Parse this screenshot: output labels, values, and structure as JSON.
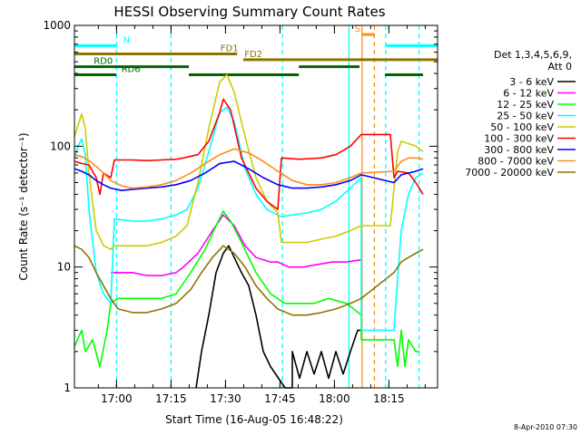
{
  "chart_data": {
    "type": "line",
    "title": "HESSI Observing Summary Count Rates",
    "xlabel": "Start Time (16-Aug-05 16:48:22)",
    "ylabel": "Count Rate (s⁻¹ detector⁻¹)",
    "y_scale": "log",
    "ylim": [
      1,
      1000
    ],
    "xlim_minutes": [
      0,
      100
    ],
    "x_ticks": [
      {
        "label": "17:00",
        "minute": 11.6
      },
      {
        "label": "17:15",
        "minute": 26.6
      },
      {
        "label": "17:30",
        "minute": 41.6
      },
      {
        "label": "17:45",
        "minute": 56.6
      },
      {
        "label": "18:00",
        "minute": 71.6
      },
      {
        "label": "18:15",
        "minute": 86.6
      }
    ],
    "y_ticks": [
      {
        "label": "1",
        "value": 1
      },
      {
        "label": "10",
        "value": 10
      },
      {
        "label": "100",
        "value": 100
      },
      {
        "label": "1000",
        "value": 1000
      }
    ],
    "legend_header": [
      "Det 1,3,4,5,6,9,",
      "Att 0"
    ],
    "legend_placement": "right",
    "series": [
      {
        "name": "3 - 6 keV",
        "color": "#000000",
        "points": [
          [
            33.5,
            1
          ],
          [
            35,
            2
          ],
          [
            37,
            4
          ],
          [
            39,
            9
          ],
          [
            41,
            13
          ],
          [
            42.5,
            15
          ],
          [
            44,
            12
          ],
          [
            46,
            9
          ],
          [
            48,
            7
          ],
          [
            50,
            4
          ],
          [
            52,
            2
          ],
          [
            54,
            1.5
          ],
          [
            58,
            1
          ],
          [
            60,
            1
          ],
          [
            60,
            2
          ],
          [
            62,
            1.2
          ],
          [
            64,
            2
          ],
          [
            66,
            1.3
          ],
          [
            68,
            2
          ],
          [
            70,
            1.2
          ],
          [
            72,
            2
          ],
          [
            74,
            1.3
          ],
          [
            76,
            2
          ],
          [
            78,
            3
          ],
          [
            79,
            3
          ]
        ]
      },
      {
        "name": "6 - 12 keV",
        "color": "#ff00ff",
        "points": [
          [
            10,
            9
          ],
          [
            12,
            9
          ],
          [
            16,
            9
          ],
          [
            20,
            8.5
          ],
          [
            24,
            8.5
          ],
          [
            28,
            9
          ],
          [
            30,
            10
          ],
          [
            34,
            13
          ],
          [
            38,
            20
          ],
          [
            41,
            27
          ],
          [
            44,
            22
          ],
          [
            47,
            15
          ],
          [
            50,
            12
          ],
          [
            54,
            11
          ],
          [
            56,
            11
          ],
          [
            59,
            10
          ],
          [
            63,
            10
          ],
          [
            67,
            10.5
          ],
          [
            71,
            11
          ],
          [
            75,
            11
          ],
          [
            79,
            11.5
          ]
        ]
      },
      {
        "name": "12 - 25 keV",
        "color": "#00ff00",
        "points": [
          [
            0,
            2.2
          ],
          [
            2,
            3
          ],
          [
            3,
            2
          ],
          [
            5,
            2.5
          ],
          [
            7,
            1.5
          ],
          [
            9,
            3
          ],
          [
            10,
            5
          ],
          [
            12,
            5.5
          ],
          [
            16,
            5.5
          ],
          [
            20,
            5.5
          ],
          [
            24,
            5.5
          ],
          [
            28,
            6
          ],
          [
            32,
            9
          ],
          [
            36,
            14
          ],
          [
            39,
            22
          ],
          [
            41,
            29
          ],
          [
            43,
            24
          ],
          [
            46,
            16
          ],
          [
            50,
            9
          ],
          [
            54,
            6
          ],
          [
            58,
            5
          ],
          [
            62,
            5
          ],
          [
            66,
            5
          ],
          [
            70,
            5.5
          ],
          [
            75,
            5
          ],
          [
            79,
            4
          ],
          [
            79,
            2.5
          ],
          [
            82,
            2.5
          ],
          [
            87,
            2.5
          ],
          [
            88,
            2.5
          ],
          [
            89,
            1.5
          ],
          [
            90,
            3
          ],
          [
            91,
            1.5
          ],
          [
            92,
            2.5
          ],
          [
            94,
            2
          ],
          [
            95,
            2
          ]
        ]
      },
      {
        "name": "25 - 50 keV",
        "color": "#00ffff",
        "points": [
          [
            0,
            80
          ],
          [
            1,
            100
          ],
          [
            2,
            115
          ],
          [
            3,
            85
          ],
          [
            4,
            30
          ],
          [
            6,
            9
          ],
          [
            8,
            6
          ],
          [
            10,
            5
          ],
          [
            11,
            25
          ],
          [
            16,
            24
          ],
          [
            20,
            24
          ],
          [
            24,
            25
          ],
          [
            28,
            27
          ],
          [
            31,
            30
          ],
          [
            34,
            45
          ],
          [
            37,
            90
          ],
          [
            40,
            190
          ],
          [
            42,
            210
          ],
          [
            44,
            160
          ],
          [
            47,
            65
          ],
          [
            50,
            40
          ],
          [
            53,
            30
          ],
          [
            56,
            27
          ],
          [
            57,
            26
          ],
          [
            60,
            27
          ],
          [
            64,
            28
          ],
          [
            68,
            30
          ],
          [
            72,
            35
          ],
          [
            76,
            45
          ],
          [
            79,
            55
          ],
          [
            79,
            3
          ],
          [
            88,
            3
          ],
          [
            89,
            8
          ],
          [
            90,
            20
          ],
          [
            92,
            40
          ],
          [
            94,
            55
          ],
          [
            96,
            60
          ]
        ]
      },
      {
        "name": "50 - 100 keV",
        "color": "#cccc00",
        "points": [
          [
            0,
            120
          ],
          [
            2,
            185
          ],
          [
            3,
            140
          ],
          [
            4,
            60
          ],
          [
            6,
            20
          ],
          [
            8,
            15
          ],
          [
            10,
            14
          ],
          [
            11,
            15
          ],
          [
            16,
            15
          ],
          [
            20,
            15
          ],
          [
            24,
            16
          ],
          [
            28,
            18
          ],
          [
            31,
            22
          ],
          [
            34,
            50
          ],
          [
            37,
            140
          ],
          [
            40,
            340
          ],
          [
            42,
            390
          ],
          [
            44,
            280
          ],
          [
            47,
            120
          ],
          [
            50,
            55
          ],
          [
            53,
            35
          ],
          [
            56,
            28
          ],
          [
            57,
            16
          ],
          [
            60,
            16
          ],
          [
            64,
            16
          ],
          [
            68,
            17
          ],
          [
            72,
            18
          ],
          [
            76,
            20
          ],
          [
            79,
            22
          ],
          [
            87,
            22
          ],
          [
            89,
            90
          ],
          [
            90,
            110
          ],
          [
            92,
            105
          ],
          [
            94,
            100
          ],
          [
            96,
            90
          ]
        ]
      },
      {
        "name": "100 - 300 keV",
        "color": "#ff0000",
        "points": [
          [
            0,
            75
          ],
          [
            2,
            72
          ],
          [
            4,
            70
          ],
          [
            6,
            55
          ],
          [
            7,
            40
          ],
          [
            8,
            60
          ],
          [
            10,
            55
          ],
          [
            11,
            77
          ],
          [
            16,
            77
          ],
          [
            20,
            76
          ],
          [
            24,
            77
          ],
          [
            28,
            78
          ],
          [
            30,
            80
          ],
          [
            34,
            85
          ],
          [
            37,
            110
          ],
          [
            40,
            190
          ],
          [
            41,
            245
          ],
          [
            43,
            200
          ],
          [
            46,
            80
          ],
          [
            50,
            45
          ],
          [
            53,
            35
          ],
          [
            56,
            30
          ],
          [
            57,
            80
          ],
          [
            62,
            78
          ],
          [
            68,
            80
          ],
          [
            72,
            85
          ],
          [
            76,
            100
          ],
          [
            79,
            125
          ],
          [
            87,
            125
          ],
          [
            88,
            55
          ],
          [
            89,
            62
          ],
          [
            92,
            60
          ],
          [
            94,
            50
          ],
          [
            96,
            40
          ]
        ]
      },
      {
        "name": "300 - 800 keV",
        "color": "#0000ff",
        "points": [
          [
            0,
            65
          ],
          [
            2,
            62
          ],
          [
            4,
            58
          ],
          [
            6,
            52
          ],
          [
            8,
            48
          ],
          [
            10,
            45
          ],
          [
            13,
            43
          ],
          [
            16,
            44
          ],
          [
            20,
            45
          ],
          [
            24,
            46
          ],
          [
            28,
            48
          ],
          [
            32,
            52
          ],
          [
            36,
            60
          ],
          [
            40,
            72
          ],
          [
            44,
            75
          ],
          [
            48,
            65
          ],
          [
            52,
            55
          ],
          [
            56,
            48
          ],
          [
            60,
            45
          ],
          [
            64,
            45
          ],
          [
            68,
            46
          ],
          [
            72,
            48
          ],
          [
            76,
            52
          ],
          [
            79,
            58
          ],
          [
            88,
            50
          ],
          [
            90,
            58
          ],
          [
            94,
            62
          ],
          [
            96,
            65
          ]
        ]
      },
      {
        "name": "800 - 7000 keV",
        "color": "#ff8c1a",
        "points": [
          [
            0,
            85
          ],
          [
            2,
            82
          ],
          [
            4,
            76
          ],
          [
            6,
            68
          ],
          [
            8,
            60
          ],
          [
            10,
            52
          ],
          [
            13,
            47
          ],
          [
            16,
            45
          ],
          [
            20,
            46
          ],
          [
            24,
            48
          ],
          [
            28,
            52
          ],
          [
            32,
            60
          ],
          [
            36,
            72
          ],
          [
            40,
            85
          ],
          [
            44,
            95
          ],
          [
            48,
            88
          ],
          [
            52,
            75
          ],
          [
            56,
            62
          ],
          [
            60,
            52
          ],
          [
            64,
            48
          ],
          [
            68,
            48
          ],
          [
            72,
            50
          ],
          [
            76,
            55
          ],
          [
            79,
            60
          ],
          [
            88,
            62
          ],
          [
            90,
            75
          ],
          [
            92,
            80
          ],
          [
            94,
            80
          ],
          [
            96,
            78
          ]
        ]
      },
      {
        "name": "7000 - 20000 keV",
        "color": "#8b7500",
        "points": [
          [
            0,
            15
          ],
          [
            2,
            14
          ],
          [
            4,
            12
          ],
          [
            6,
            9
          ],
          [
            8,
            7
          ],
          [
            10,
            5.5
          ],
          [
            12,
            4.5
          ],
          [
            16,
            4.2
          ],
          [
            20,
            4.2
          ],
          [
            24,
            4.5
          ],
          [
            28,
            5
          ],
          [
            32,
            6.5
          ],
          [
            35,
            9
          ],
          [
            38,
            12
          ],
          [
            41,
            15
          ],
          [
            44,
            13
          ],
          [
            47,
            10
          ],
          [
            50,
            7
          ],
          [
            53,
            5.5
          ],
          [
            56,
            4.5
          ],
          [
            60,
            4
          ],
          [
            64,
            4
          ],
          [
            68,
            4.2
          ],
          [
            72,
            4.5
          ],
          [
            76,
            5
          ],
          [
            79,
            5.5
          ],
          [
            88,
            9
          ],
          [
            90,
            11
          ],
          [
            92,
            12
          ],
          [
            94,
            13
          ],
          [
            96,
            14
          ]
        ]
      }
    ],
    "vertical_lines": [
      {
        "minute": 11.6,
        "color": "#00ffff",
        "style": "dashed"
      },
      {
        "minute": 26.6,
        "color": "#00ffff",
        "style": "dashed"
      },
      {
        "minute": 57.3,
        "color": "#00ffff",
        "style": "dashed"
      },
      {
        "minute": 75.6,
        "color": "#00ffff",
        "style": "solid"
      },
      {
        "minute": 79.2,
        "color": "#ff8c1a",
        "style": "solid"
      },
      {
        "minute": 82.6,
        "color": "#ff8c1a",
        "style": "dashed"
      },
      {
        "minute": 85.7,
        "color": "#00ffff",
        "style": "dashed"
      },
      {
        "minute": 94.9,
        "color": "#00ffff",
        "style": "dashed"
      }
    ],
    "annotations": [
      {
        "label": "N",
        "color": "#00ffff",
        "segments": [
          [
            0,
            11.6
          ],
          [
            85.7,
            100
          ]
        ],
        "label_minute": 13.4,
        "level": 680
      },
      {
        "label": "S",
        "color": "#ff8c1a",
        "segments": [
          [
            79.2,
            82.6
          ]
        ],
        "label_minute": 77.2,
        "level": 840
      },
      {
        "label": "FD1",
        "color": "#8b7500",
        "segments": [
          [
            0,
            44.8
          ]
        ],
        "label_minute": 40.2,
        "level": 580
      },
      {
        "label": "FD2",
        "color": "#8b7500",
        "segments": [
          [
            46.5,
            100
          ]
        ],
        "label_minute": 46.8,
        "level": 520
      },
      {
        "label": "RD0",
        "color": "#006400",
        "segments": [
          [
            0,
            31.5
          ],
          [
            61.8,
            78.5
          ]
        ],
        "label_minute": 5.3,
        "level": 455
      },
      {
        "label": "RD6",
        "color": "#006400",
        "segments": [
          [
            0,
            11.5
          ],
          [
            31.5,
            61.8
          ],
          [
            85.5,
            96
          ]
        ],
        "label_minute": 12.9,
        "level": 390
      }
    ]
  },
  "timestamp": "8-Apr-2010 07:30"
}
